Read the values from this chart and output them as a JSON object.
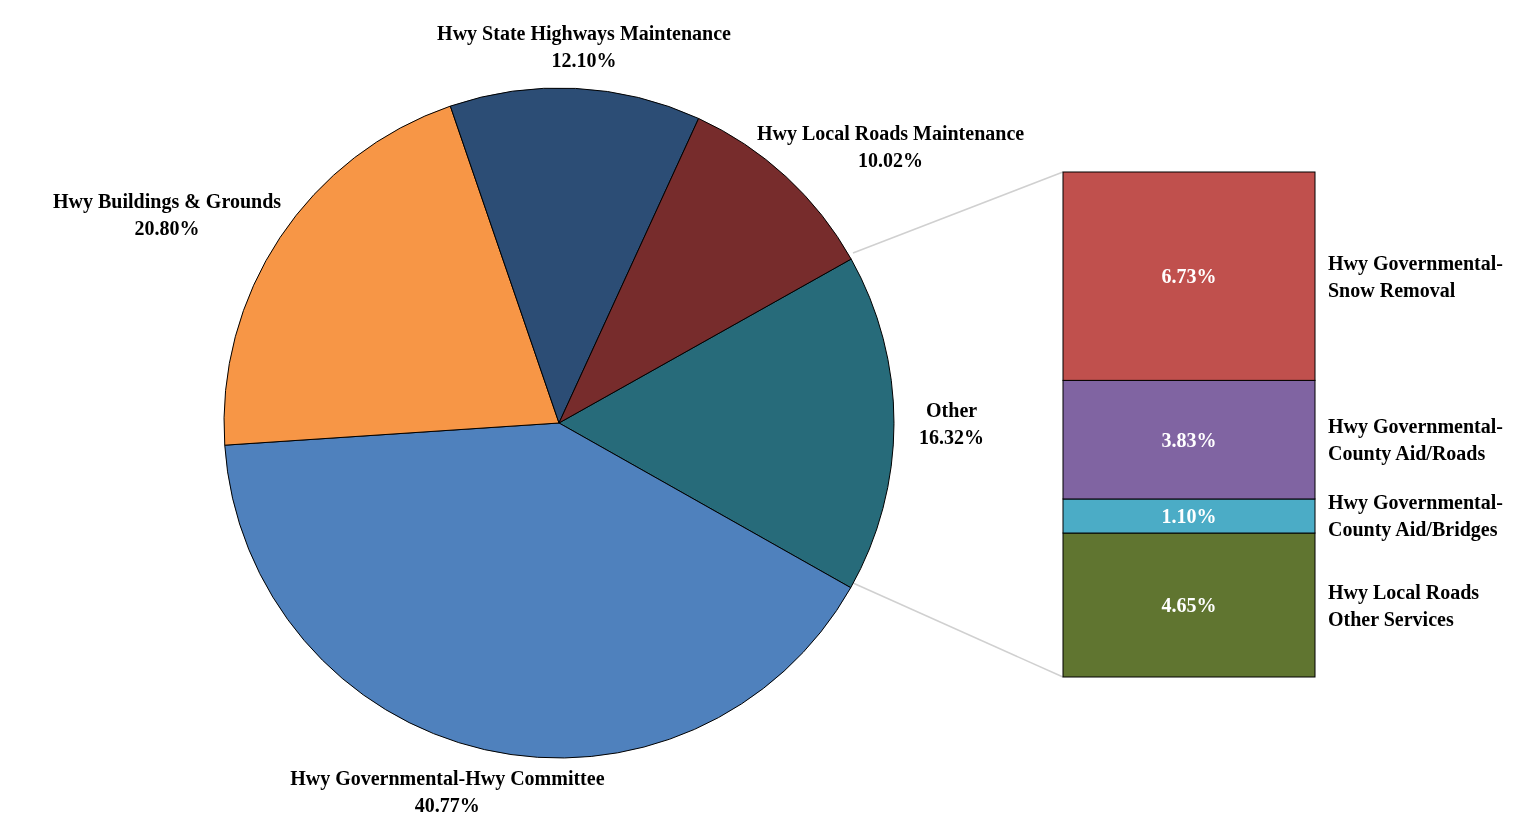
{
  "chart_data": [
    {
      "type": "pie",
      "categories": [
        "Other",
        "Hwy Governmental-Hwy Committee",
        "Hwy Buildings & Grounds",
        "Hwy State Highways Maintenance",
        "Hwy Local Roads Maintenance"
      ],
      "values": [
        16.32,
        40.77,
        20.8,
        12.1,
        10.02
      ],
      "colors": [
        "#276b7a",
        "#4f81bd",
        "#f79646",
        "#2c4d75",
        "#772c2c"
      ],
      "value_labels": [
        "16.32%",
        "40.77%",
        "20.80%",
        "12.10%",
        "10.02%"
      ]
    },
    {
      "type": "bar",
      "stacked": true,
      "categories": [
        null
      ],
      "series": [
        {
          "name": "Hwy Local Roads Other Services",
          "color": "#607530",
          "values": [
            4.65
          ],
          "value_labels": [
            "4.65%"
          ]
        },
        {
          "name": "Hwy Governmental-County Aid/Bridges",
          "color": "#4bacc6",
          "values": [
            1.1
          ],
          "value_labels": [
            "1.10%"
          ]
        },
        {
          "name": "Hwy Governmental-County Aid/Roads",
          "color": "#8064a2",
          "values": [
            3.83
          ],
          "value_labels": [
            "3.83%"
          ]
        },
        {
          "name": "Hwy Governmental-Snow Removal",
          "color": "#c0504d",
          "values": [
            6.73
          ],
          "value_labels": [
            "6.73%"
          ]
        }
      ]
    }
  ]
}
